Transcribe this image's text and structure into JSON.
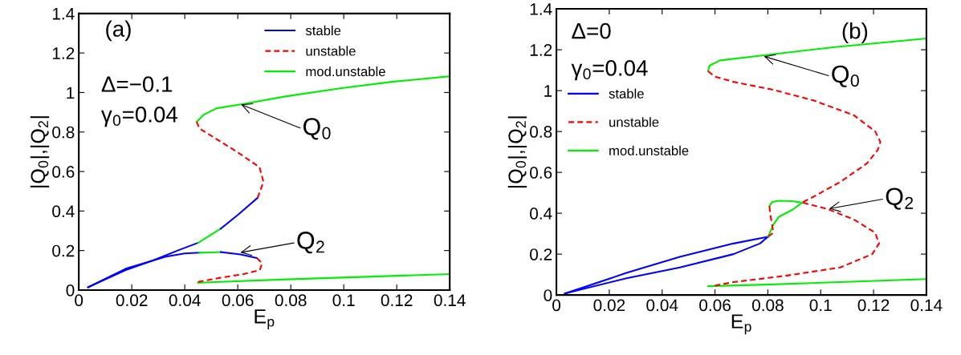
{
  "chart_data": [
    {
      "type": "line",
      "xlabel": "E$_{p}$",
      "ylabel": "|Q$_{0}$|,|Q$_{2}$|",
      "xlim": [
        0,
        0.14
      ],
      "ylim": [
        0,
        1.4
      ],
      "xticks": [
        0,
        0.02,
        0.04,
        0.06,
        0.08,
        0.1,
        0.12,
        0.14
      ],
      "yticks": [
        0,
        0.2,
        0.4,
        0.6,
        0.8,
        1,
        1.2,
        1.4
      ],
      "legend": "top right",
      "grid": false,
      "annotations": [
        "(a)",
        "Δ=−0.1",
        "γ$_{0}$=0.04",
        {
          "text": "Q$_{0}$",
          "x": 0.0612,
          "y": 0.94
        },
        {
          "text": "Q$_{2}$",
          "x": 0.061,
          "y": 0.19
        }
      ],
      "series": [
        {
          "name": "stable",
          "color": "#0000ff",
          "line_style": "solid",
          "x": [
            0.0035,
            0.0177,
            0.0278,
            0.0379,
            0.045
          ],
          "values": [
            0.014,
            0.101,
            0.149,
            0.203,
            0.239
          ]
        },
        {
          "color": "#00ee00",
          "line_style": "solid",
          "x": [
            0.045,
            0.0536
          ],
          "values": [
            0.239,
            0.311
          ]
        },
        {
          "color": "#0000ff",
          "line_style": "solid",
          "x": [
            0.0536,
            0.06,
            0.0675
          ],
          "values": [
            0.311,
            0.38,
            0.467
          ]
        },
        {
          "name": "unstable",
          "color": "#ff0000",
          "line_style": "dashed",
          "x": [
            0.0675,
            0.0697,
            0.0682,
            0.06,
            0.052,
            0.0455,
            0.0445
          ],
          "values": [
            0.467,
            0.548,
            0.622,
            0.697,
            0.764,
            0.818,
            0.852
          ]
        },
        {
          "name": "mod.unstable",
          "color": "#00ee00",
          "line_style": "solid",
          "x": [
            0.0445,
            0.047,
            0.052,
            0.0612,
            0.0784,
            0.0986,
            0.1188,
            0.14
          ],
          "values": [
            0.852,
            0.886,
            0.92,
            0.94,
            0.981,
            1.021,
            1.055,
            1.082
          ]
        },
        {
          "color": "#0000ff",
          "line_style": "solid",
          "x": [
            0.0035,
            0.0177,
            0.0329,
            0.04,
            0.0455
          ],
          "values": [
            0.014,
            0.108,
            0.169,
            0.185,
            0.189
          ]
        },
        {
          "color": "#00ee00",
          "line_style": "solid",
          "x": [
            0.0455,
            0.0536
          ],
          "values": [
            0.189,
            0.192
          ]
        },
        {
          "color": "#0000ff",
          "line_style": "solid",
          "x": [
            0.0536,
            0.061,
            0.0672
          ],
          "values": [
            0.192,
            0.18,
            0.162
          ]
        },
        {
          "color": "#ff0000",
          "line_style": "dashed",
          "x": [
            0.0672,
            0.0692,
            0.0683,
            0.0622,
            0.053,
            0.045
          ],
          "values": [
            0.162,
            0.135,
            0.101,
            0.081,
            0.061,
            0.041
          ]
        },
        {
          "color": "#00ee00",
          "line_style": "solid",
          "x": [
            0.045,
            0.0784,
            0.14
          ],
          "values": [
            0.037,
            0.054,
            0.081
          ]
        }
      ]
    },
    {
      "type": "line",
      "xlabel": "E$_{p}$",
      "ylabel": "|Q$_{0}$|,|Q$_{2}$|",
      "xlim": [
        0,
        0.14
      ],
      "ylim": [
        0,
        1.4
      ],
      "xticks": [
        0,
        0.02,
        0.04,
        0.06,
        0.08,
        0.1,
        0.12,
        0.14
      ],
      "yticks": [
        0,
        0.2,
        0.4,
        0.6,
        0.8,
        1,
        1.2,
        1.4
      ],
      "legend": "left",
      "grid": false,
      "annotations": [
        "(b)",
        "Δ=0",
        "γ$_{0}$=0.04",
        {
          "text": "Q$_{0}$",
          "x": 0.0785,
          "y": 1.168
        },
        {
          "text": "Q$_{2}$",
          "x": 0.1032,
          "y": 0.422
        }
      ],
      "series": [
        {
          "name": "stable",
          "color": "#0000ff",
          "line_style": "solid",
          "x": [
            0.0032,
            0.0265,
            0.0467,
            0.067,
            0.0801
          ],
          "values": [
            0.007,
            0.108,
            0.187,
            0.252,
            0.285
          ]
        },
        {
          "color": "#0000ff",
          "line_style": "solid",
          "x": [
            0.0032,
            0.0265,
            0.0467,
            0.067,
            0.077,
            0.0801
          ],
          "values": [
            0.007,
            0.082,
            0.135,
            0.2,
            0.252,
            0.285
          ]
        },
        {
          "name": "mod.unstable",
          "color": "#00ee00",
          "line_style": "solid",
          "x": [
            0.0801,
            0.0821,
            0.0842,
            0.0892,
            0.0933
          ],
          "values": [
            0.285,
            0.344,
            0.383,
            0.416,
            0.455
          ]
        },
        {
          "name": "unstable",
          "color": "#ff0000",
          "line_style": "dashed",
          "x": [
            0.0933,
            0.0973,
            0.1074,
            0.1175,
            0.1216,
            0.1226,
            0.1206,
            0.1125,
            0.0973,
            0.0821,
            0.067,
            0.0599,
            0.0574
          ],
          "values": [
            0.455,
            0.481,
            0.553,
            0.644,
            0.71,
            0.749,
            0.801,
            0.88,
            0.952,
            1.004,
            1.043,
            1.069,
            1.095
          ]
        },
        {
          "color": "#00ee00",
          "line_style": "solid",
          "x": [
            0.0574,
            0.0579,
            0.0619,
            0.0791,
            0.1054,
            0.14
          ],
          "values": [
            1.095,
            1.122,
            1.148,
            1.174,
            1.213,
            1.255
          ]
        },
        {
          "color": "#ff0000",
          "line_style": "dashed",
          "x": [
            0.0801,
            0.0821,
            0.0816,
            0.0809,
            0.0806
          ],
          "values": [
            0.285,
            0.305,
            0.344,
            0.396,
            0.435
          ]
        },
        {
          "color": "#00ee00",
          "line_style": "solid",
          "x": [
            0.0806,
            0.0816,
            0.0842,
            0.0892,
            0.0933
          ],
          "values": [
            0.435,
            0.455,
            0.461,
            0.459,
            0.451
          ]
        },
        {
          "color": "#ff0000",
          "line_style": "dashed",
          "x": [
            0.0933,
            0.1023,
            0.1125,
            0.1206,
            0.1221,
            0.1195,
            0.1074,
            0.0872,
            0.067,
            0.0599
          ],
          "values": [
            0.451,
            0.422,
            0.37,
            0.305,
            0.252,
            0.2,
            0.135,
            0.095,
            0.063,
            0.046
          ]
        },
        {
          "color": "#00ee00",
          "line_style": "solid",
          "x": [
            0.0574,
            0.077,
            0.1074,
            0.14
          ],
          "values": [
            0.043,
            0.05,
            0.063,
            0.078
          ]
        }
      ]
    }
  ]
}
